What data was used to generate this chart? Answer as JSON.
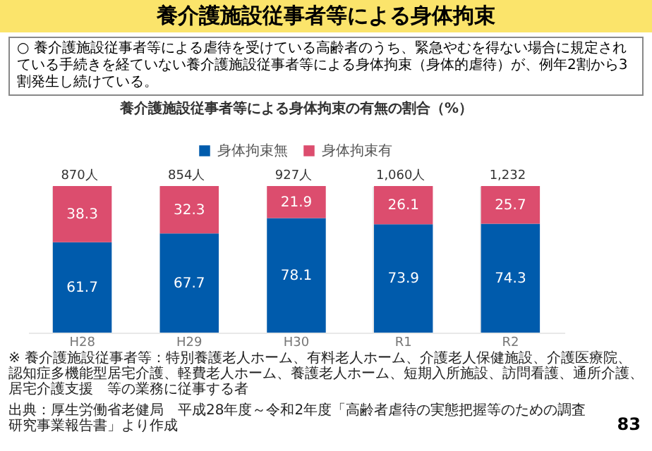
{
  "chart_data": {
    "type": "bar",
    "title": "養介護施設従事者等による身体拘束",
    "subtitle": "養介護施設従事者等による身体拘束の有無の割合（%）",
    "categories": [
      "H28",
      "H29",
      "H30",
      "R1",
      "R2"
    ],
    "stacked": true,
    "series": [
      {
        "name": "身体拘束無",
        "color": "#005bac",
        "values": [
          61.7,
          67.7,
          78.1,
          73.9,
          74.3
        ]
      },
      {
        "name": "身体拘束有",
        "color": "#dc4d6e",
        "values": [
          38.3,
          32.3,
          21.9,
          26.1,
          25.7
        ]
      }
    ],
    "data_labels": true,
    "legend": "top",
    "grid": "x",
    "tick_labels": "x",
    "annotations": [
      "○ 養介護施設従事者等による虐待を受けている高齢者のうち、緊急やむを得ない場合に規定されている手続きを経ていない養介護施設従事者等による身体拘束（身体的虐待）が、例年2割から3割発生し続けている。",
      "※ 養介護施設従事者等：特別養護老人ホーム、有料老人ホーム、介護老人保健施設、介護医療院、認知症多機能型居宅介護、軽費老人ホーム、養護老人ホーム、短期入所施設、訪問看護、通所介護、居宅介護支援　等の業務に従事する者",
      "出典：厚生労働省老健局　平成28年度～令和2年度「高齢者虐待の実態把握等のための調査研究事業報告書」より作成",
      "83",
      {
        "text": "870人",
        "x": "H28",
        "y": 100
      },
      {
        "text": "854人",
        "x": "H29",
        "y": 100
      },
      {
        "text": "927人",
        "x": "H30",
        "y": 100
      },
      {
        "text": "1,060人",
        "x": "R1",
        "y": 100
      },
      {
        "text": "1,232",
        "x": "R2",
        "y": 100
      }
    ]
  }
}
